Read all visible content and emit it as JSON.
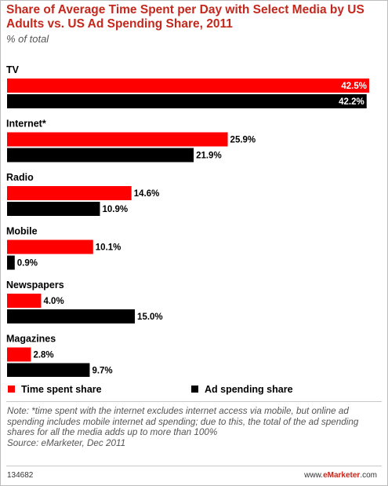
{
  "title": "Share of Average Time Spent per Day with Select Media by US Adults vs. US Ad Spending Share, 2011",
  "subtitle": "% of total",
  "note": "Note: *time spent with the internet excludes internet access via mobile, but online ad spending includes mobile internet ad spending; due to this, the total of the ad spending shares for all the media adds up to more than 100%",
  "source": "Source: eMarketer, Dec 2011",
  "chart_id": "134682",
  "brand": {
    "prefix": "www.",
    "name": "eMarketer",
    "suffix": ".com"
  },
  "colors": {
    "time_spent": "#ff0000",
    "ad_spending": "#000000",
    "title": "#c4281d"
  },
  "chart_data": {
    "type": "bar",
    "orientation": "horizontal",
    "categories": [
      "TV",
      "Internet*",
      "Radio",
      "Mobile",
      "Newspapers",
      "Magazines"
    ],
    "series": [
      {
        "name": "Time spent share",
        "values": [
          42.5,
          25.9,
          14.6,
          10.1,
          4.0,
          2.8
        ],
        "labels": [
          "42.5%",
          "25.9%",
          "14.6%",
          "10.1%",
          "4.0%",
          "2.8%"
        ]
      },
      {
        "name": "Ad spending share",
        "values": [
          42.2,
          21.9,
          10.9,
          0.9,
          15.0,
          9.7
        ],
        "labels": [
          "42.2%",
          "21.9%",
          "10.9%",
          "0.9%",
          "15.0%",
          "9.7%"
        ]
      }
    ],
    "xlim": [
      0,
      42.5
    ],
    "legend_position": "bottom"
  }
}
